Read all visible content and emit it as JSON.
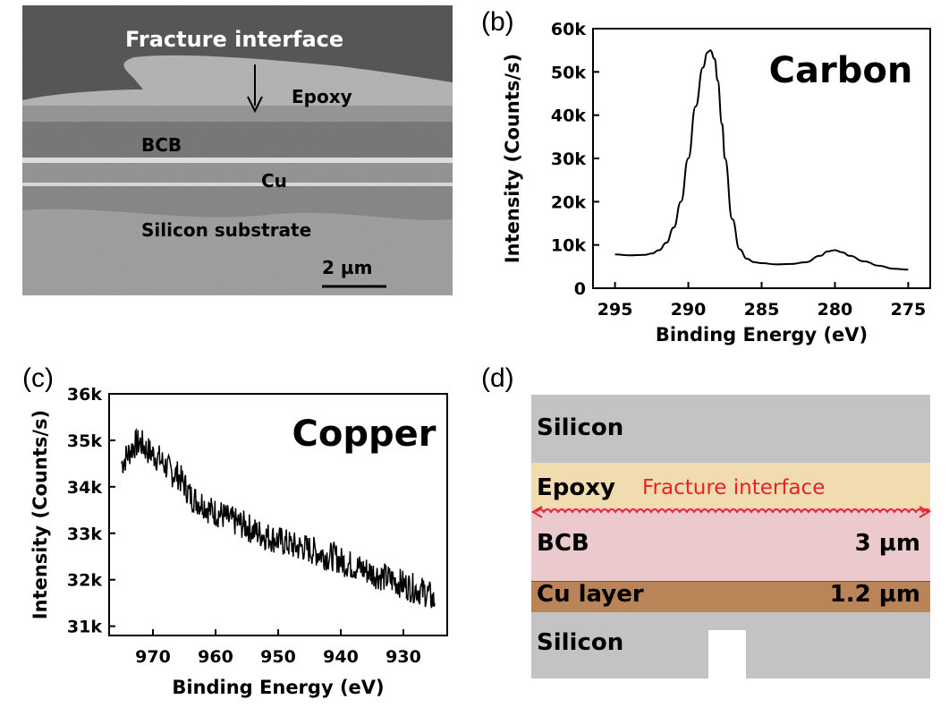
{
  "panels": {
    "a": {
      "label": "(a)",
      "image": {
        "fracture_label": "Fracture interface",
        "layers": [
          "Epoxy",
          "BCB",
          "Cu",
          "Silicon substrate"
        ],
        "scalebar": "2 µm"
      }
    },
    "b": {
      "label": "(b)"
    },
    "c": {
      "label": "(c)"
    },
    "d": {
      "label": "(d)",
      "schematic": {
        "top": "Silicon",
        "epoxy": "Epoxy",
        "fracture": "Fracture interface",
        "bcb": "BCB",
        "bcb_thickness": "3 µm",
        "cu": "Cu layer",
        "cu_thickness": "1.2 µm",
        "bottom": "Silicon",
        "colors": {
          "silicon": "#c3c3c3",
          "epoxy": "#f1dcb0",
          "bcb": "#ecc9cc",
          "cu": "#b88458",
          "fracture": "#e8202a"
        }
      }
    }
  },
  "chart_data": [
    {
      "panel": "b",
      "type": "line",
      "title": "Carbon",
      "xlabel": "Binding Energy (eV)",
      "ylabel": "Intensity (Counts/s)",
      "xlim": [
        296.5,
        273.5
      ],
      "ylim": [
        0,
        60000
      ],
      "xticks": [
        295,
        290,
        285,
        280,
        275
      ],
      "xtick_labels": [
        "295",
        "290",
        "285",
        "280",
        "275"
      ],
      "yticks": [
        0,
        10000,
        20000,
        30000,
        40000,
        50000,
        60000
      ],
      "ytick_labels": [
        "0",
        "10k",
        "20k",
        "30k",
        "40k",
        "50k",
        "60k"
      ],
      "series": [
        {
          "x": [
            295.0,
            294.0,
            293.0,
            292.5,
            292.0,
            291.5,
            291.0,
            290.5,
            290.0,
            289.5,
            289.0,
            288.7,
            288.5,
            288.2,
            288.0,
            287.7,
            287.5,
            287.0,
            286.5,
            286.0,
            285.5,
            285.0,
            284.0,
            283.0,
            282.0,
            281.0,
            280.5,
            280.0,
            279.5,
            279.0,
            278.0,
            277.0,
            276.0,
            275.0
          ],
          "y": [
            7800,
            7600,
            7700,
            8000,
            8800,
            10500,
            14000,
            20000,
            30000,
            42000,
            51000,
            54500,
            55000,
            53000,
            48000,
            38000,
            30000,
            16000,
            9000,
            6800,
            6000,
            5800,
            5500,
            5600,
            6000,
            7500,
            8500,
            8800,
            8300,
            7500,
            6200,
            5200,
            4500,
            4300
          ]
        }
      ]
    },
    {
      "panel": "c",
      "type": "line",
      "title": "Copper",
      "xlabel": "Binding Energy (eV)",
      "ylabel": "Intensity (Counts/s)",
      "xlim": [
        977,
        923
      ],
      "ylim": [
        30800,
        36000
      ],
      "xticks": [
        970,
        960,
        950,
        940,
        930
      ],
      "xtick_labels": [
        "970",
        "960",
        "950",
        "940",
        "930"
      ],
      "yticks": [
        31000,
        32000,
        33000,
        34000,
        35000,
        36000
      ],
      "ytick_labels": [
        "31k",
        "32k",
        "33k",
        "34k",
        "35k",
        "36k"
      ],
      "series": [
        {
          "x": [
            975,
            974,
            973,
            972,
            971,
            970,
            969,
            968,
            967,
            966,
            965,
            964,
            963,
            962,
            961,
            960,
            959,
            958,
            957,
            956,
            955,
            954,
            953,
            952,
            951,
            950,
            949,
            948,
            947,
            946,
            945,
            944,
            943,
            942,
            941,
            940,
            939,
            938,
            937,
            936,
            935,
            934,
            933,
            932,
            931,
            930,
            929,
            928,
            927,
            926,
            925
          ],
          "y": [
            34500,
            34700,
            34900,
            34950,
            34800,
            34700,
            34600,
            34450,
            34300,
            34250,
            34050,
            33800,
            33700,
            33650,
            33500,
            33450,
            33400,
            33300,
            33250,
            33200,
            33150,
            33050,
            33000,
            32950,
            32900,
            32850,
            32800,
            32750,
            32700,
            32700,
            32650,
            32600,
            32550,
            32500,
            32500,
            32400,
            32350,
            32300,
            32250,
            32200,
            32150,
            32100,
            32050,
            32000,
            31950,
            31900,
            31850,
            31800,
            31750,
            31700,
            31500
          ]
        }
      ]
    }
  ]
}
